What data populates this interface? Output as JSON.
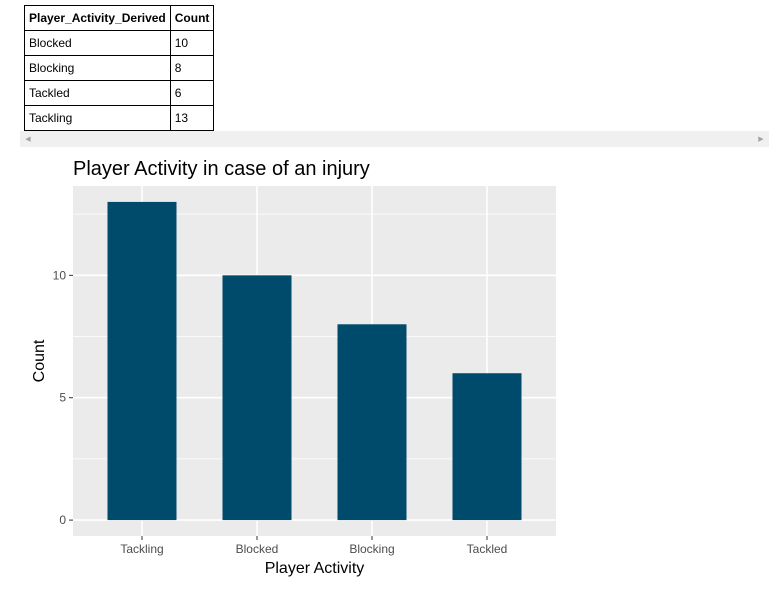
{
  "table": {
    "headers": [
      "Player_Activity_Derived",
      "Count"
    ],
    "rows": [
      [
        "Blocked",
        "10"
      ],
      [
        "Blocking",
        "8"
      ],
      [
        "Tackled",
        "6"
      ],
      [
        "Tackling",
        "13"
      ]
    ]
  },
  "scrollbar": {
    "left_arrow": "◀",
    "right_arrow": "▶"
  },
  "chart_data": {
    "type": "bar",
    "title": "Player Activity in case of an injury",
    "xlabel": "Player Activity",
    "ylabel": "Count",
    "categories": [
      "Tackling",
      "Blocked",
      "Blocking",
      "Tackled"
    ],
    "values": [
      13,
      10,
      8,
      6
    ],
    "y_ticks": [
      0,
      5,
      10
    ],
    "ylim": [
      -0.65,
      13.65
    ],
    "bar_color": "#004A6B",
    "panel_color": "#EBEBEB",
    "grid": true,
    "legend": "none"
  }
}
